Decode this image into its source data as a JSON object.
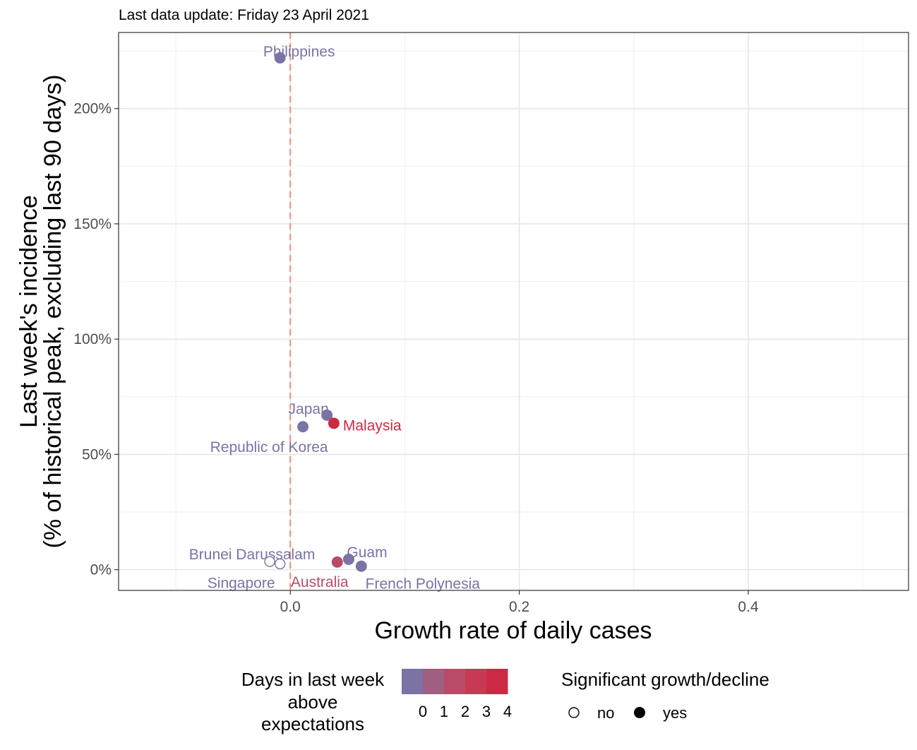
{
  "chart_data": {
    "type": "scatter",
    "subtitle": "Last data update: Friday 23 April 2021",
    "xlabel": "Growth rate of daily cases",
    "ylabel_line1": "Last week's incidence",
    "ylabel_line2": "(% of historical peak, excluding last 90 days)",
    "xlim": [
      -0.15,
      0.54
    ],
    "ylim": [
      -0.09,
      2.33
    ],
    "x_ticks": [
      0.0,
      0.2,
      0.4
    ],
    "x_tick_labels": [
      "0.0",
      "0.2",
      "0.4"
    ],
    "y_ticks": [
      0,
      0.5,
      1.0,
      1.5,
      2.0
    ],
    "y_tick_labels": [
      "0%",
      "50%",
      "100%",
      "150%",
      "200%"
    ],
    "reference_line": {
      "x": 0,
      "style": "dashed",
      "color": "#f08a78"
    },
    "grid": true,
    "points": [
      {
        "label": "Philippines",
        "x": -0.009,
        "y": 2.22,
        "days": 0,
        "significant": true
      },
      {
        "label": "Japan",
        "x": 0.032,
        "y": 0.67,
        "days": 0,
        "significant": true
      },
      {
        "label": "Malaysia",
        "x": 0.038,
        "y": 0.635,
        "days": 4,
        "significant": true
      },
      {
        "label": "Republic of Korea",
        "x": 0.011,
        "y": 0.62,
        "days": 0,
        "significant": true
      },
      {
        "label": "Guam",
        "x": 0.051,
        "y": 0.045,
        "days": 0,
        "significant": true
      },
      {
        "label": "Australia",
        "x": 0.041,
        "y": 0.033,
        "days": 2,
        "significant": true
      },
      {
        "label": "French Polynesia",
        "x": 0.062,
        "y": 0.015,
        "days": 0,
        "significant": true
      },
      {
        "label": "Brunei Darussalam",
        "x": -0.018,
        "y": 0.035,
        "days": 0,
        "significant": false
      },
      {
        "label": "Singapore",
        "x": -0.009,
        "y": 0.025,
        "days": 0,
        "significant": false
      }
    ],
    "legend": {
      "placement": "bottom",
      "color_title_lines": [
        "Days in last week",
        "above",
        "expectations"
      ],
      "color_levels": [
        "0",
        "1",
        "2",
        "3",
        "4"
      ],
      "color_scale": [
        "#7b72a6",
        "#9e5f80",
        "#b84c66",
        "#c83a54",
        "#cc2a44"
      ],
      "shape_title": "Significant growth/decline",
      "shape_entries": [
        "no",
        "yes"
      ]
    }
  }
}
